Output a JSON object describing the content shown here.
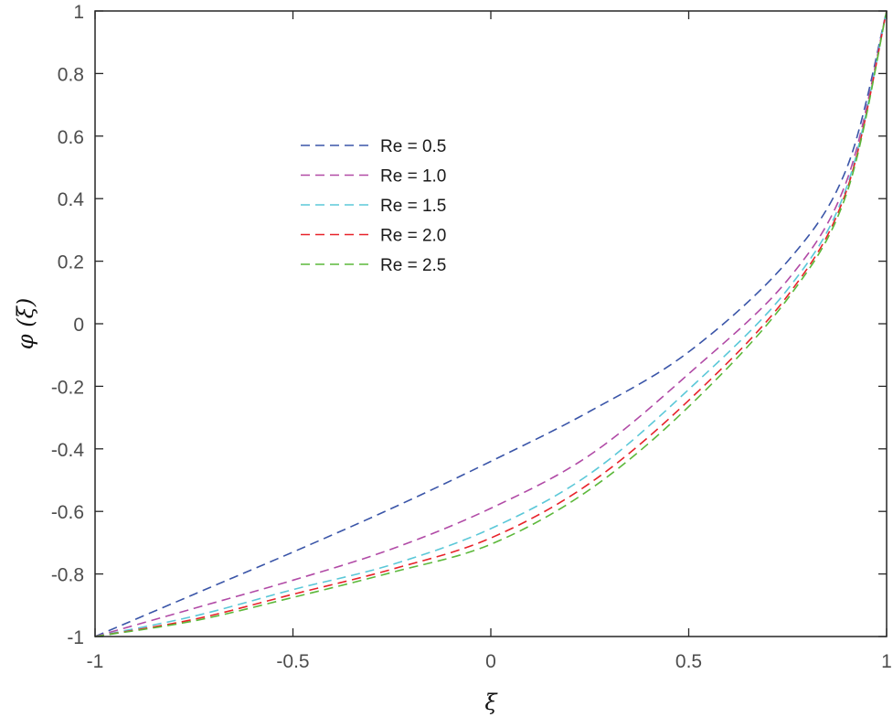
{
  "chart_data": {
    "type": "line",
    "title": "",
    "xlabel": "ξ",
    "ylabel": "φ (ξ)",
    "xlim": [
      -1,
      1
    ],
    "ylim": [
      -1,
      1
    ],
    "xticks": [
      -1,
      -0.5,
      0,
      0.5,
      1
    ],
    "xtick_labels": [
      "-1",
      "-0.5",
      "0",
      "0.5",
      "1"
    ],
    "yticks": [
      -1,
      -0.8,
      -0.6,
      -0.4,
      -0.2,
      0,
      0.2,
      0.4,
      0.6,
      0.8,
      1
    ],
    "ytick_labels": [
      "-1",
      "-0.8",
      "-0.6",
      "-0.4",
      "-0.2",
      "0",
      "0.2",
      "0.4",
      "0.6",
      "0.8",
      "1"
    ],
    "grid": false,
    "legend_position": "upper-left-inside",
    "line_style": "dashed",
    "x": [
      -1,
      -0.75,
      -0.5,
      -0.25,
      0,
      0.25,
      0.5,
      0.75,
      0.9,
      1
    ],
    "series": [
      {
        "name": "Re = 0.5",
        "color": "#3a55a8",
        "values": [
          -1,
          -0.865,
          -0.73,
          -0.59,
          -0.44,
          -0.28,
          -0.09,
          0.2,
          0.5,
          1
        ]
      },
      {
        "name": "Re = 1.0",
        "color": "#b14aa6",
        "values": [
          -1,
          -0.91,
          -0.82,
          -0.72,
          -0.59,
          -0.42,
          -0.16,
          0.14,
          0.46,
          1
        ]
      },
      {
        "name": "Re = 1.5",
        "color": "#5bc8d8",
        "values": [
          -1,
          -0.935,
          -0.85,
          -0.77,
          -0.655,
          -0.48,
          -0.21,
          0.11,
          0.44,
          1
        ]
      },
      {
        "name": "Re = 2.0",
        "color": "#e8222a",
        "values": [
          -1,
          -0.945,
          -0.865,
          -0.785,
          -0.685,
          -0.51,
          -0.245,
          0.09,
          0.43,
          1
        ]
      },
      {
        "name": "Re = 2.5",
        "color": "#5cb83a",
        "values": [
          -1,
          -0.95,
          -0.875,
          -0.795,
          -0.705,
          -0.53,
          -0.265,
          0.08,
          0.42,
          1
        ]
      }
    ]
  }
}
